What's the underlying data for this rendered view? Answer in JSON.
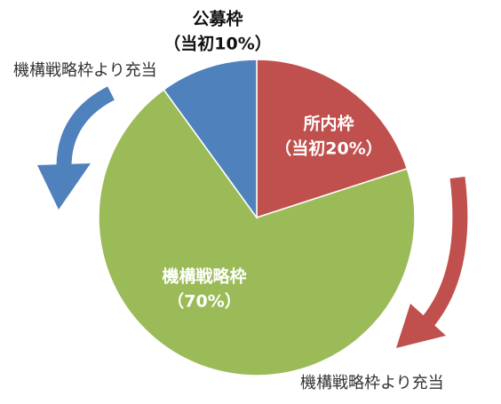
{
  "chart_data": {
    "type": "pie",
    "categories": [
      "所内枠",
      "機構戦略枠",
      "公募枠"
    ],
    "values": [
      20,
      70,
      10
    ],
    "value_labels": [
      "（当初20%）",
      "（70%）",
      "（当初10%）"
    ],
    "colors": [
      "#c0504d",
      "#9bbb59",
      "#4f81bd"
    ],
    "annotations": [
      "機構戦略枠より充当",
      "機構戦略枠より充当"
    ]
  }
}
